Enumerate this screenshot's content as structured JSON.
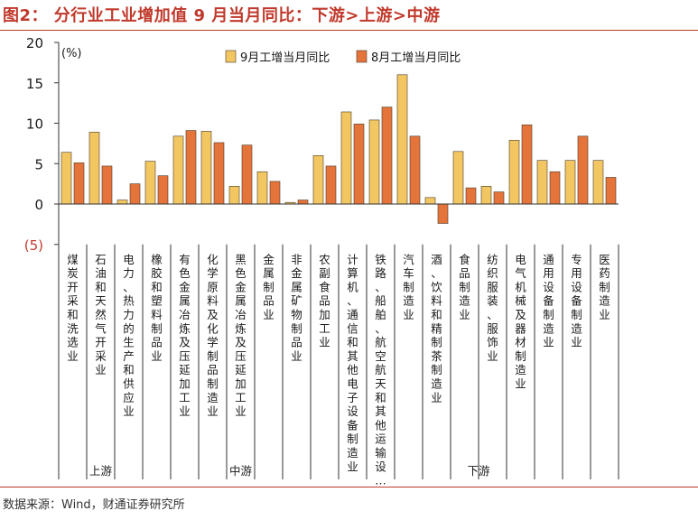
{
  "header": {
    "title": "图2：  分行业工业增加值 9 月当月同比：下游>上游>中游"
  },
  "footer": {
    "source": "数据来源：Wind，财通证券研究所"
  },
  "colors": {
    "accent": "#c0392b",
    "sep": "#f2c660",
    "aug": "#e5743a",
    "axis": "#333333"
  },
  "chart_data": {
    "type": "bar",
    "unit_label": "(%)",
    "ylim": [
      -5,
      20
    ],
    "yticks": [
      {
        "value": 20,
        "label": "20"
      },
      {
        "value": 15,
        "label": "15"
      },
      {
        "value": 10,
        "label": "10"
      },
      {
        "value": 5,
        "label": "5"
      },
      {
        "value": 0,
        "label": "0"
      },
      {
        "value": -5,
        "label": "(5)"
      }
    ],
    "legend_position": "top",
    "grid": false,
    "categories": [
      "煤炭开采和洗选业",
      "石油和天然气开采业",
      "电力、热力的生产和供应业",
      "橡胶和塑料制品业",
      "有色金属冶炼及压延加工业",
      "化学原料及化学制品制造业",
      "黑色金属冶炼及压延加工业",
      "金属制品业",
      "非金属矿物制品业",
      "农副食品加工业",
      "计算机、通信和其他电子设备制造业",
      "铁路、船舶、航空航天和其他运输设…",
      "汽车制造业",
      "酒、饮料和精制茶制造业",
      "食品制造业",
      "纺织服装、服饰业",
      "电气机械及器材制造业",
      "通用设备制造业",
      "专用设备制造业",
      "医药制造业"
    ],
    "series": [
      {
        "name": "9月工增当月同比",
        "values": [
          6.4,
          8.9,
          0.5,
          5.3,
          8.4,
          9.0,
          2.2,
          4.0,
          0.2,
          6.0,
          11.4,
          10.4,
          16.0,
          0.8,
          6.5,
          2.2,
          7.9,
          5.4,
          5.4,
          5.4
        ]
      },
      {
        "name": "8月工增当月同比",
        "values": [
          5.1,
          4.7,
          2.5,
          3.5,
          9.1,
          7.6,
          7.3,
          2.8,
          0.5,
          4.7,
          9.9,
          12.0,
          8.4,
          -2.4,
          2.0,
          1.5,
          9.8,
          4.0,
          8.4,
          3.3
        ]
      }
    ],
    "groups": [
      {
        "label": "上游",
        "from": 0,
        "to": 2
      },
      {
        "label": "中游",
        "from": 3,
        "to": 9
      },
      {
        "label": "下游",
        "from": 10,
        "to": 19
      }
    ]
  }
}
